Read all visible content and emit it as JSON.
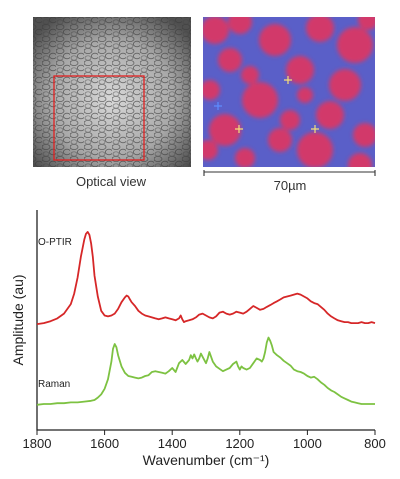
{
  "panels": {
    "optical": {
      "caption": "Optical view"
    },
    "map": {
      "scale_label": "70µm"
    }
  },
  "chart_data": {
    "type": "line",
    "xlabel": "Wavenumber (cm⁻¹)",
    "ylabel": "Amplitude (au)",
    "xlim": [
      1800,
      800
    ],
    "x_ticks": [
      1800,
      1600,
      1400,
      1200,
      1000,
      800
    ],
    "y_ticks": [],
    "series": [
      {
        "name": "O-PTIR",
        "color": "#d62728",
        "x": [
          1800,
          1780,
          1760,
          1740,
          1720,
          1700,
          1690,
          1680,
          1670,
          1660,
          1655,
          1650,
          1645,
          1640,
          1635,
          1630,
          1620,
          1610,
          1600,
          1590,
          1580,
          1570,
          1560,
          1550,
          1540,
          1535,
          1530,
          1525,
          1520,
          1510,
          1500,
          1490,
          1480,
          1470,
          1460,
          1450,
          1440,
          1430,
          1420,
          1410,
          1400,
          1390,
          1380,
          1375,
          1370,
          1365,
          1360,
          1350,
          1340,
          1330,
          1320,
          1310,
          1300,
          1290,
          1280,
          1270,
          1260,
          1250,
          1240,
          1230,
          1220,
          1210,
          1200,
          1190,
          1180,
          1170,
          1160,
          1150,
          1140,
          1130,
          1120,
          1110,
          1100,
          1090,
          1080,
          1070,
          1060,
          1050,
          1040,
          1030,
          1020,
          1010,
          1000,
          990,
          980,
          970,
          960,
          950,
          940,
          930,
          920,
          910,
          900,
          890,
          880,
          870,
          860,
          850,
          840,
          830,
          820,
          810,
          800
        ],
        "y": [
          0.01,
          0.02,
          0.04,
          0.07,
          0.12,
          0.22,
          0.33,
          0.5,
          0.72,
          0.9,
          0.96,
          0.98,
          0.95,
          0.86,
          0.72,
          0.52,
          0.3,
          0.15,
          0.1,
          0.09,
          0.1,
          0.12,
          0.17,
          0.24,
          0.29,
          0.31,
          0.3,
          0.27,
          0.24,
          0.2,
          0.15,
          0.12,
          0.1,
          0.09,
          0.08,
          0.07,
          0.06,
          0.07,
          0.08,
          0.07,
          0.06,
          0.05,
          0.07,
          0.1,
          0.06,
          0.03,
          0.04,
          0.05,
          0.06,
          0.08,
          0.11,
          0.12,
          0.1,
          0.08,
          0.07,
          0.09,
          0.13,
          0.14,
          0.12,
          0.11,
          0.12,
          0.14,
          0.13,
          0.12,
          0.14,
          0.17,
          0.2,
          0.18,
          0.16,
          0.17,
          0.19,
          0.21,
          0.23,
          0.25,
          0.27,
          0.29,
          0.3,
          0.31,
          0.32,
          0.33,
          0.32,
          0.3,
          0.28,
          0.25,
          0.23,
          0.22,
          0.19,
          0.16,
          0.12,
          0.09,
          0.07,
          0.05,
          0.04,
          0.03,
          0.03,
          0.02,
          0.02,
          0.02,
          0.03,
          0.02,
          0.02,
          0.03,
          0.02
        ]
      },
      {
        "name": "Raman",
        "color": "#7dc242",
        "x": [
          1800,
          1780,
          1760,
          1740,
          1720,
          1700,
          1680,
          1660,
          1640,
          1630,
          1620,
          1610,
          1600,
          1590,
          1580,
          1575,
          1570,
          1565,
          1560,
          1550,
          1540,
          1530,
          1520,
          1510,
          1500,
          1490,
          1480,
          1470,
          1460,
          1450,
          1440,
          1430,
          1420,
          1410,
          1400,
          1390,
          1380,
          1370,
          1360,
          1350,
          1345,
          1340,
          1335,
          1330,
          1325,
          1320,
          1315,
          1310,
          1300,
          1295,
          1290,
          1285,
          1280,
          1270,
          1260,
          1250,
          1240,
          1230,
          1220,
          1210,
          1205,
          1200,
          1195,
          1190,
          1180,
          1170,
          1160,
          1150,
          1140,
          1135,
          1130,
          1125,
          1120,
          1115,
          1110,
          1105,
          1100,
          1095,
          1090,
          1080,
          1070,
          1060,
          1050,
          1040,
          1030,
          1020,
          1010,
          1000,
          990,
          980,
          970,
          960,
          950,
          940,
          930,
          920,
          910,
          900,
          890,
          880,
          870,
          860,
          850,
          840,
          830,
          820,
          810,
          800
        ],
        "y": [
          0.04,
          0.05,
          0.05,
          0.06,
          0.06,
          0.07,
          0.07,
          0.08,
          0.09,
          0.1,
          0.13,
          0.17,
          0.24,
          0.36,
          0.58,
          0.74,
          0.8,
          0.76,
          0.66,
          0.52,
          0.44,
          0.4,
          0.39,
          0.38,
          0.37,
          0.38,
          0.4,
          0.41,
          0.45,
          0.46,
          0.45,
          0.44,
          0.43,
          0.46,
          0.5,
          0.45,
          0.56,
          0.6,
          0.55,
          0.6,
          0.66,
          0.62,
          0.67,
          0.62,
          0.58,
          0.62,
          0.68,
          0.64,
          0.56,
          0.62,
          0.7,
          0.64,
          0.58,
          0.52,
          0.49,
          0.46,
          0.48,
          0.5,
          0.55,
          0.58,
          0.52,
          0.48,
          0.52,
          0.5,
          0.48,
          0.5,
          0.56,
          0.62,
          0.6,
          0.58,
          0.62,
          0.7,
          0.82,
          0.88,
          0.84,
          0.78,
          0.7,
          0.68,
          0.66,
          0.63,
          0.59,
          0.56,
          0.53,
          0.48,
          0.46,
          0.45,
          0.43,
          0.4,
          0.38,
          0.39,
          0.36,
          0.32,
          0.29,
          0.25,
          0.22,
          0.2,
          0.17,
          0.14,
          0.12,
          0.1,
          0.08,
          0.07,
          0.06,
          0.05,
          0.05,
          0.05,
          0.05,
          0.05
        ]
      }
    ]
  }
}
